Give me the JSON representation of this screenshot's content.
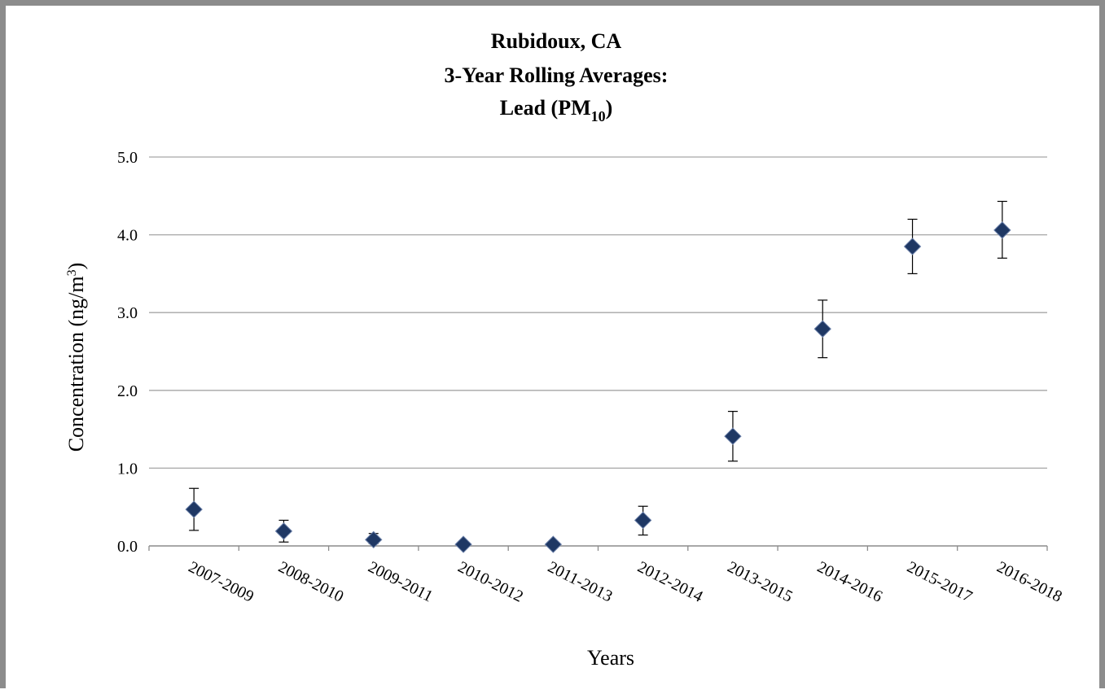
{
  "chart_data": {
    "type": "scatter",
    "title_lines": [
      "Rubidoux, CA",
      "3-Year Rolling Averages:",
      "Lead (PM",
      "10",
      ")"
    ],
    "title": "Rubidoux, CA 3-Year Rolling Averages: Lead (PM10)",
    "xlabel": "Years",
    "ylabel_main": "Concentration (ng/m",
    "ylabel_sup": "3",
    "ylabel_close": ")",
    "ylabel": "Concentration (ng/m3)",
    "categories": [
      "2007-2009",
      "2008-2010",
      "2009-2011",
      "2010-2012",
      "2011-2013",
      "2012-2014",
      "2013-2015",
      "2014-2016",
      "2015-2017",
      "2016-2018"
    ],
    "values": [
      0.47,
      0.19,
      0.08,
      0.02,
      0.02,
      0.33,
      1.41,
      2.79,
      3.85,
      4.06
    ],
    "error_low": [
      0.2,
      0.05,
      0.03,
      0.0,
      0.0,
      0.14,
      1.09,
      2.42,
      3.5,
      3.7
    ],
    "error_high": [
      0.74,
      0.33,
      0.16,
      0.04,
      0.04,
      0.51,
      1.73,
      3.16,
      4.2,
      4.43
    ],
    "ylim": [
      0,
      5
    ],
    "yticks": [
      "0.0",
      "1.0",
      "2.0",
      "3.0",
      "4.0",
      "5.0"
    ],
    "grid": true,
    "legend": "none",
    "marker": "diamond",
    "marker_color": "#1f3864",
    "gridline_color": "#a6a6a6"
  }
}
